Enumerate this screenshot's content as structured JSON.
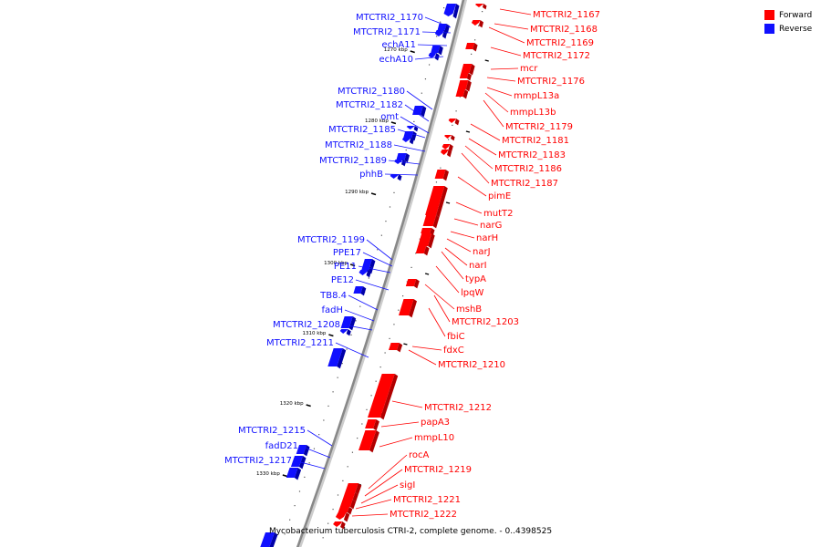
{
  "colors": {
    "forward": "#ff0000",
    "reverse": "#1010ff",
    "forward_shade": "#b00000",
    "reverse_shade": "#0000a8",
    "axis": "#888888"
  },
  "legend": [
    {
      "label": "Forward",
      "color": "#ff0000"
    },
    {
      "label": "Reverse",
      "color": "#1010ff"
    }
  ],
  "caption": "Mycobacterium tuberculosis CTRI-2, complete genome. - 0..4398525",
  "ticks": [
    "1270 kbp",
    "1280 kbp",
    "1290 kbp",
    "1300 kbp",
    "1310 kbp",
    "1320 kbp",
    "1330 kbp"
  ],
  "reverse_genes": [
    "MTCTRI2_1170",
    "MTCTRI2_1171",
    "echA11",
    "echA10",
    "MTCTRI2_1180",
    "MTCTRI2_1182",
    "omt",
    "MTCTRI2_1185",
    "MTCTRI2_1188",
    "MTCTRI2_1189",
    "phhB",
    "MTCTRI2_1199",
    "PPE17",
    "PE11",
    "PE12",
    "TB8.4",
    "fadH",
    "MTCTRI2_1208",
    "MTCTRI2_1211",
    "MTCTRI2_1215",
    "fadD21",
    "MTCTRI2_1217"
  ],
  "forward_genes": [
    "MTCTRI2_1167",
    "MTCTRI2_1168",
    "MTCTRI2_1169",
    "MTCTRI2_1172",
    "mcr",
    "MTCTRI2_1176",
    "mmpL13a",
    "mmpL13b",
    "MTCTRI2_1179",
    "MTCTRI2_1181",
    "MTCTRI2_1183",
    "MTCTRI2_1186",
    "MTCTRI2_1187",
    "pimE",
    "mutT2",
    "narG",
    "narH",
    "narJ",
    "narI",
    "typA",
    "lpqW",
    "mshB",
    "MTCTRI2_1203",
    "fbiC",
    "fdxC",
    "MTCTRI2_1210",
    "MTCTRI2_1212",
    "papA3",
    "mmpL10",
    "rocA",
    "MTCTRI2_1219",
    "sigI",
    "MTCTRI2_1221",
    "MTCTRI2_1222"
  ]
}
